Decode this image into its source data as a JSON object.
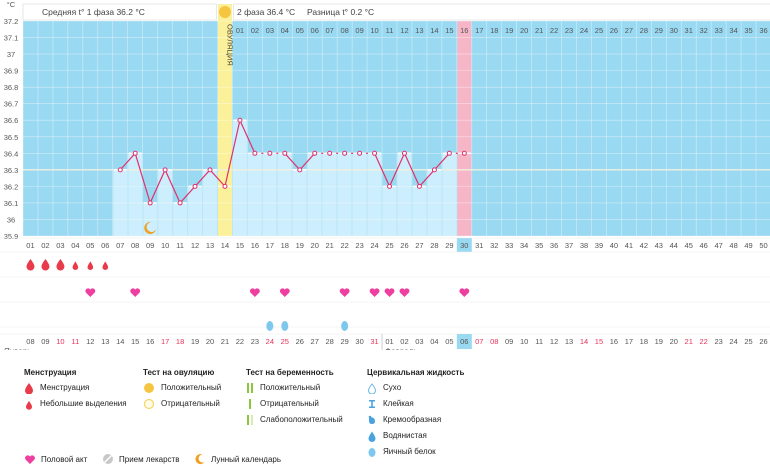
{
  "chart": {
    "y_unit": "°C",
    "y_ticks": [
      "37.2",
      "37.1",
      "37",
      "36.9",
      "36.8",
      "36.7",
      "36.6",
      "36.5",
      "36.4",
      "36.3",
      "36.2",
      "36.1",
      "36",
      "35.9"
    ],
    "phase1_text": "Средняя t° 1 фаза 36.2 °C",
    "phase2_text": "2 фаза 36.4 °C",
    "diff_text": "Разница t° 0.2 °C",
    "ovulation_label": "ОВУЛЯЦИЯ",
    "colors": {
      "background": "#9ad9f2",
      "filled": "#cdeefc",
      "ovulation": "#fbf19a",
      "today": "#f7b6c8",
      "line": "#e0306a",
      "coverline": "#f0f0e0",
      "accent": "#f5c542"
    }
  },
  "chart_data": {
    "type": "line",
    "ylim": [
      35.9,
      37.2
    ],
    "cycle_days": [
      "01",
      "02",
      "03",
      "04",
      "05",
      "06",
      "07",
      "08",
      "09",
      "10",
      "11",
      "12",
      "13",
      "14",
      "15",
      "16",
      "17",
      "18",
      "19",
      "20",
      "21",
      "22",
      "23",
      "24",
      "25",
      "26",
      "27",
      "28",
      "29",
      "30",
      "31",
      "32",
      "33",
      "34",
      "35",
      "36",
      "37",
      "38",
      "39",
      "40",
      "41",
      "42",
      "43",
      "44",
      "45",
      "46",
      "47",
      "48",
      "49",
      "50"
    ],
    "temperatures": [
      null,
      null,
      null,
      null,
      null,
      null,
      36.3,
      36.4,
      36.1,
      36.3,
      36.1,
      36.2,
      36.3,
      36.2,
      36.6,
      36.4,
      36.4,
      36.4,
      36.3,
      36.4,
      36.4,
      36.4,
      36.4,
      36.4,
      36.2,
      36.4,
      36.2,
      36.3,
      36.4,
      36.4
    ],
    "coverline": 36.3,
    "ovulation_day": 14,
    "current_day": 30,
    "post_ovulation_days": [
      "01",
      "02",
      "03",
      "04",
      "05",
      "06",
      "07",
      "08",
      "09",
      "10",
      "11",
      "12",
      "13",
      "14",
      "15",
      "16",
      "17",
      "18",
      "19",
      "20",
      "21",
      "22",
      "23",
      "24",
      "25",
      "26",
      "27",
      "28",
      "29",
      "30",
      "31",
      "32",
      "33",
      "34",
      "35",
      "36"
    ],
    "dates": [
      "08",
      "09",
      "10",
      "11",
      "12",
      "13",
      "14",
      "15",
      "16",
      "17",
      "18",
      "19",
      "20",
      "21",
      "22",
      "23",
      "24",
      "25",
      "26",
      "27",
      "28",
      "29",
      "30",
      "31",
      "01",
      "02",
      "03",
      "04",
      "05",
      "06",
      "07",
      "08",
      "09",
      "10",
      "11",
      "12",
      "13",
      "14",
      "15",
      "16",
      "17",
      "18",
      "19",
      "20",
      "21",
      "22",
      "23",
      "24",
      "25",
      "26"
    ],
    "red_dates_index": [
      2,
      3,
      9,
      10,
      16,
      17,
      23,
      30,
      31,
      37,
      38,
      44,
      45
    ],
    "months": [
      {
        "name": "Январь",
        "start_index": 0
      },
      {
        "name": "Февраль",
        "start_index": 24
      }
    ],
    "menstruation_heavy_days": [
      1,
      2,
      3
    ],
    "menstruation_light_days": [
      4,
      5,
      6
    ],
    "intercourse_days": [
      5,
      8,
      16,
      18,
      22,
      24,
      25,
      26,
      30
    ],
    "eggwhite_days": [
      17,
      18,
      22
    ],
    "moon_day": 9
  },
  "legend": {
    "menstruation": {
      "title": "Менструация",
      "heavy": "Менструация",
      "light": "Небольшие выделения"
    },
    "ovulation_test": {
      "title": "Тест на овуляцию",
      "positive": "Положительный",
      "negative": "Отрицательный"
    },
    "pregnancy_test": {
      "title": "Тест на беременность",
      "positive": "Положительный",
      "negative": "Отрицательный",
      "weak": "Слабоположительный"
    },
    "cervical": {
      "title": "Цервикальная жидкость",
      "dry": "Сухо",
      "sticky": "Клейкая",
      "creamy": "Кремообразная",
      "watery": "Водянистая",
      "eggwhite": "Яичный белок"
    },
    "bottom": {
      "intercourse": "Половой акт",
      "meds": "Прием лекарств",
      "lunar": "Лунный календарь"
    }
  }
}
